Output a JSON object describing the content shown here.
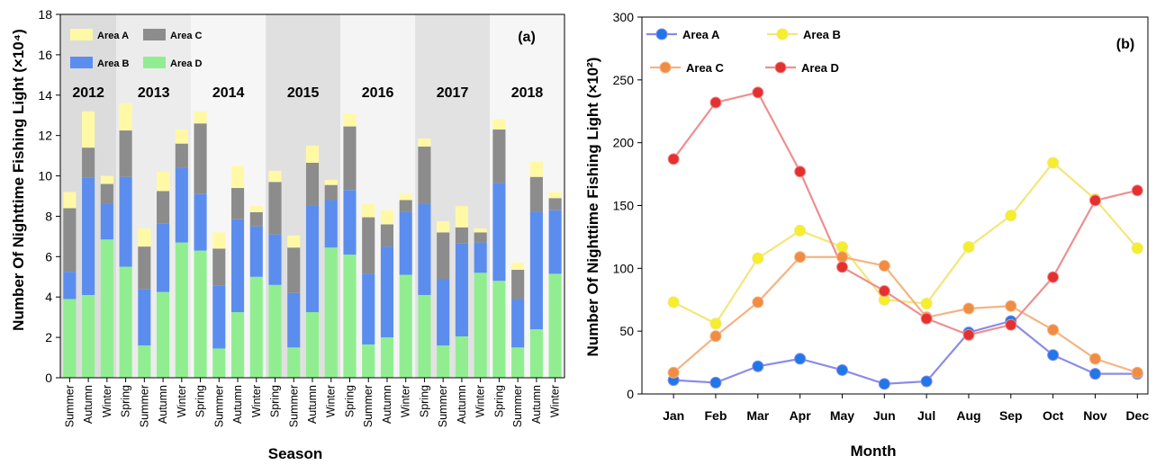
{
  "chart_data": [
    {
      "type": "bar",
      "stacked": true,
      "panel_label": "(a)",
      "xlabel": "Season",
      "ylabel": "Number Of Nighttime Fishing Light (×10⁴)",
      "ylim": [
        0,
        18
      ],
      "yticks": [
        "0",
        "2",
        "4",
        "6",
        "8",
        "10",
        "12",
        "14",
        "16",
        "18"
      ],
      "categories": [
        "Summer",
        "Autumn",
        "Winter",
        "Spring",
        "Summer",
        "Autumn",
        "Winter",
        "Spring",
        "Summer",
        "Autumn",
        "Winter",
        "Spring",
        "Summer",
        "Autumn",
        "Winter",
        "Spring",
        "Summer",
        "Autumn",
        "Winter",
        "Spring",
        "Summer",
        "Autumn",
        "Winter",
        "Spring",
        "Summer",
        "Autumn",
        "Winter"
      ],
      "year_groups": [
        {
          "label": "2012",
          "start": 0,
          "end": 2,
          "shade": "#dcdcdc"
        },
        {
          "label": "2013",
          "start": 3,
          "end": 6,
          "shade": "#ececec"
        },
        {
          "label": "2014",
          "start": 7,
          "end": 10,
          "shade": "#f6f6f6"
        },
        {
          "label": "2015",
          "start": 11,
          "end": 14,
          "shade": "#e0e0e0"
        },
        {
          "label": "2016",
          "start": 15,
          "end": 18,
          "shade": "#f4f4f4"
        },
        {
          "label": "2017",
          "start": 19,
          "end": 22,
          "shade": "#e2e2e2"
        },
        {
          "label": "2018",
          "start": 23,
          "end": 26,
          "shade": "#f6f6f6"
        }
      ],
      "series": [
        {
          "name": "Area D",
          "color": "#90ee90",
          "values": [
            3.9,
            4.1,
            6.85,
            5.5,
            1.6,
            4.25,
            6.7,
            6.3,
            1.45,
            3.25,
            5.0,
            4.6,
            1.5,
            3.25,
            6.45,
            6.1,
            1.65,
            2.0,
            5.1,
            4.1,
            1.6,
            2.05,
            5.2,
            4.8,
            1.5,
            2.4,
            5.15
          ]
        },
        {
          "name": "Area B",
          "color": "#5b8def",
          "values": [
            1.35,
            5.8,
            1.75,
            4.45,
            2.8,
            3.4,
            3.7,
            2.8,
            3.1,
            4.6,
            2.5,
            2.5,
            2.7,
            5.3,
            2.35,
            3.2,
            3.5,
            4.5,
            3.1,
            4.5,
            3.3,
            4.6,
            1.5,
            4.85,
            2.4,
            5.8,
            3.15
          ]
        },
        {
          "name": "Area C",
          "color": "#8c8c8c",
          "values": [
            3.15,
            1.5,
            1.0,
            2.3,
            2.1,
            1.6,
            1.2,
            3.5,
            1.85,
            1.55,
            0.7,
            2.6,
            2.25,
            2.1,
            0.75,
            3.15,
            2.8,
            1.1,
            0.6,
            2.85,
            2.3,
            0.8,
            0.5,
            2.65,
            1.45,
            1.75,
            0.6
          ]
        },
        {
          "name": "Area A",
          "color": "#fff9a6",
          "values": [
            0.8,
            1.8,
            0.4,
            1.35,
            0.9,
            0.95,
            0.7,
            0.6,
            0.8,
            1.1,
            0.3,
            0.55,
            0.6,
            0.85,
            0.25,
            0.65,
            0.65,
            0.7,
            0.3,
            0.4,
            0.55,
            1.05,
            0.2,
            0.5,
            0.35,
            0.75,
            0.3
          ]
        }
      ],
      "legend": {
        "position": "top-left",
        "order": [
          "Area A",
          "Area C",
          "Area B",
          "Area D"
        ]
      }
    },
    {
      "type": "line",
      "panel_label": "(b)",
      "xlabel": "Month",
      "ylabel": "Number Of Nighttime Fishing Light (×10²)",
      "ylim": [
        0,
        300
      ],
      "yticks": [
        "0",
        "50",
        "100",
        "150",
        "200",
        "250",
        "300"
      ],
      "x": [
        "Jan",
        "Feb",
        "Mar",
        "Apr",
        "May",
        "Jun",
        "Jul",
        "Aug",
        "Sep",
        "Oct",
        "Nov",
        "Dec"
      ],
      "series": [
        {
          "name": "Area A",
          "color": "#8b8be8",
          "marker_color": "#1f77e8",
          "values": [
            11,
            9,
            22,
            28,
            19,
            8,
            10,
            49,
            58,
            31,
            16,
            16
          ]
        },
        {
          "name": "Area B",
          "color": "#f3e67a",
          "marker_color": "#f5ee2a",
          "values": [
            73,
            56,
            108,
            130,
            117,
            75,
            72,
            117,
            142,
            184,
            155,
            116
          ]
        },
        {
          "name": "Area C",
          "color": "#f4b483",
          "marker_color": "#f08c43",
          "values": [
            17,
            46,
            73,
            109,
            109,
            102,
            61,
            68,
            70,
            51,
            28,
            17
          ]
        },
        {
          "name": "Area D",
          "color": "#ee8f8f",
          "marker_color": "#e53030",
          "values": [
            187,
            232,
            240,
            177,
            101,
            82,
            60,
            47,
            55,
            93,
            154,
            162
          ]
        }
      ],
      "legend": {
        "position": "top-left",
        "order": [
          "Area A",
          "Area B",
          "Area C",
          "Area D"
        ]
      }
    }
  ]
}
